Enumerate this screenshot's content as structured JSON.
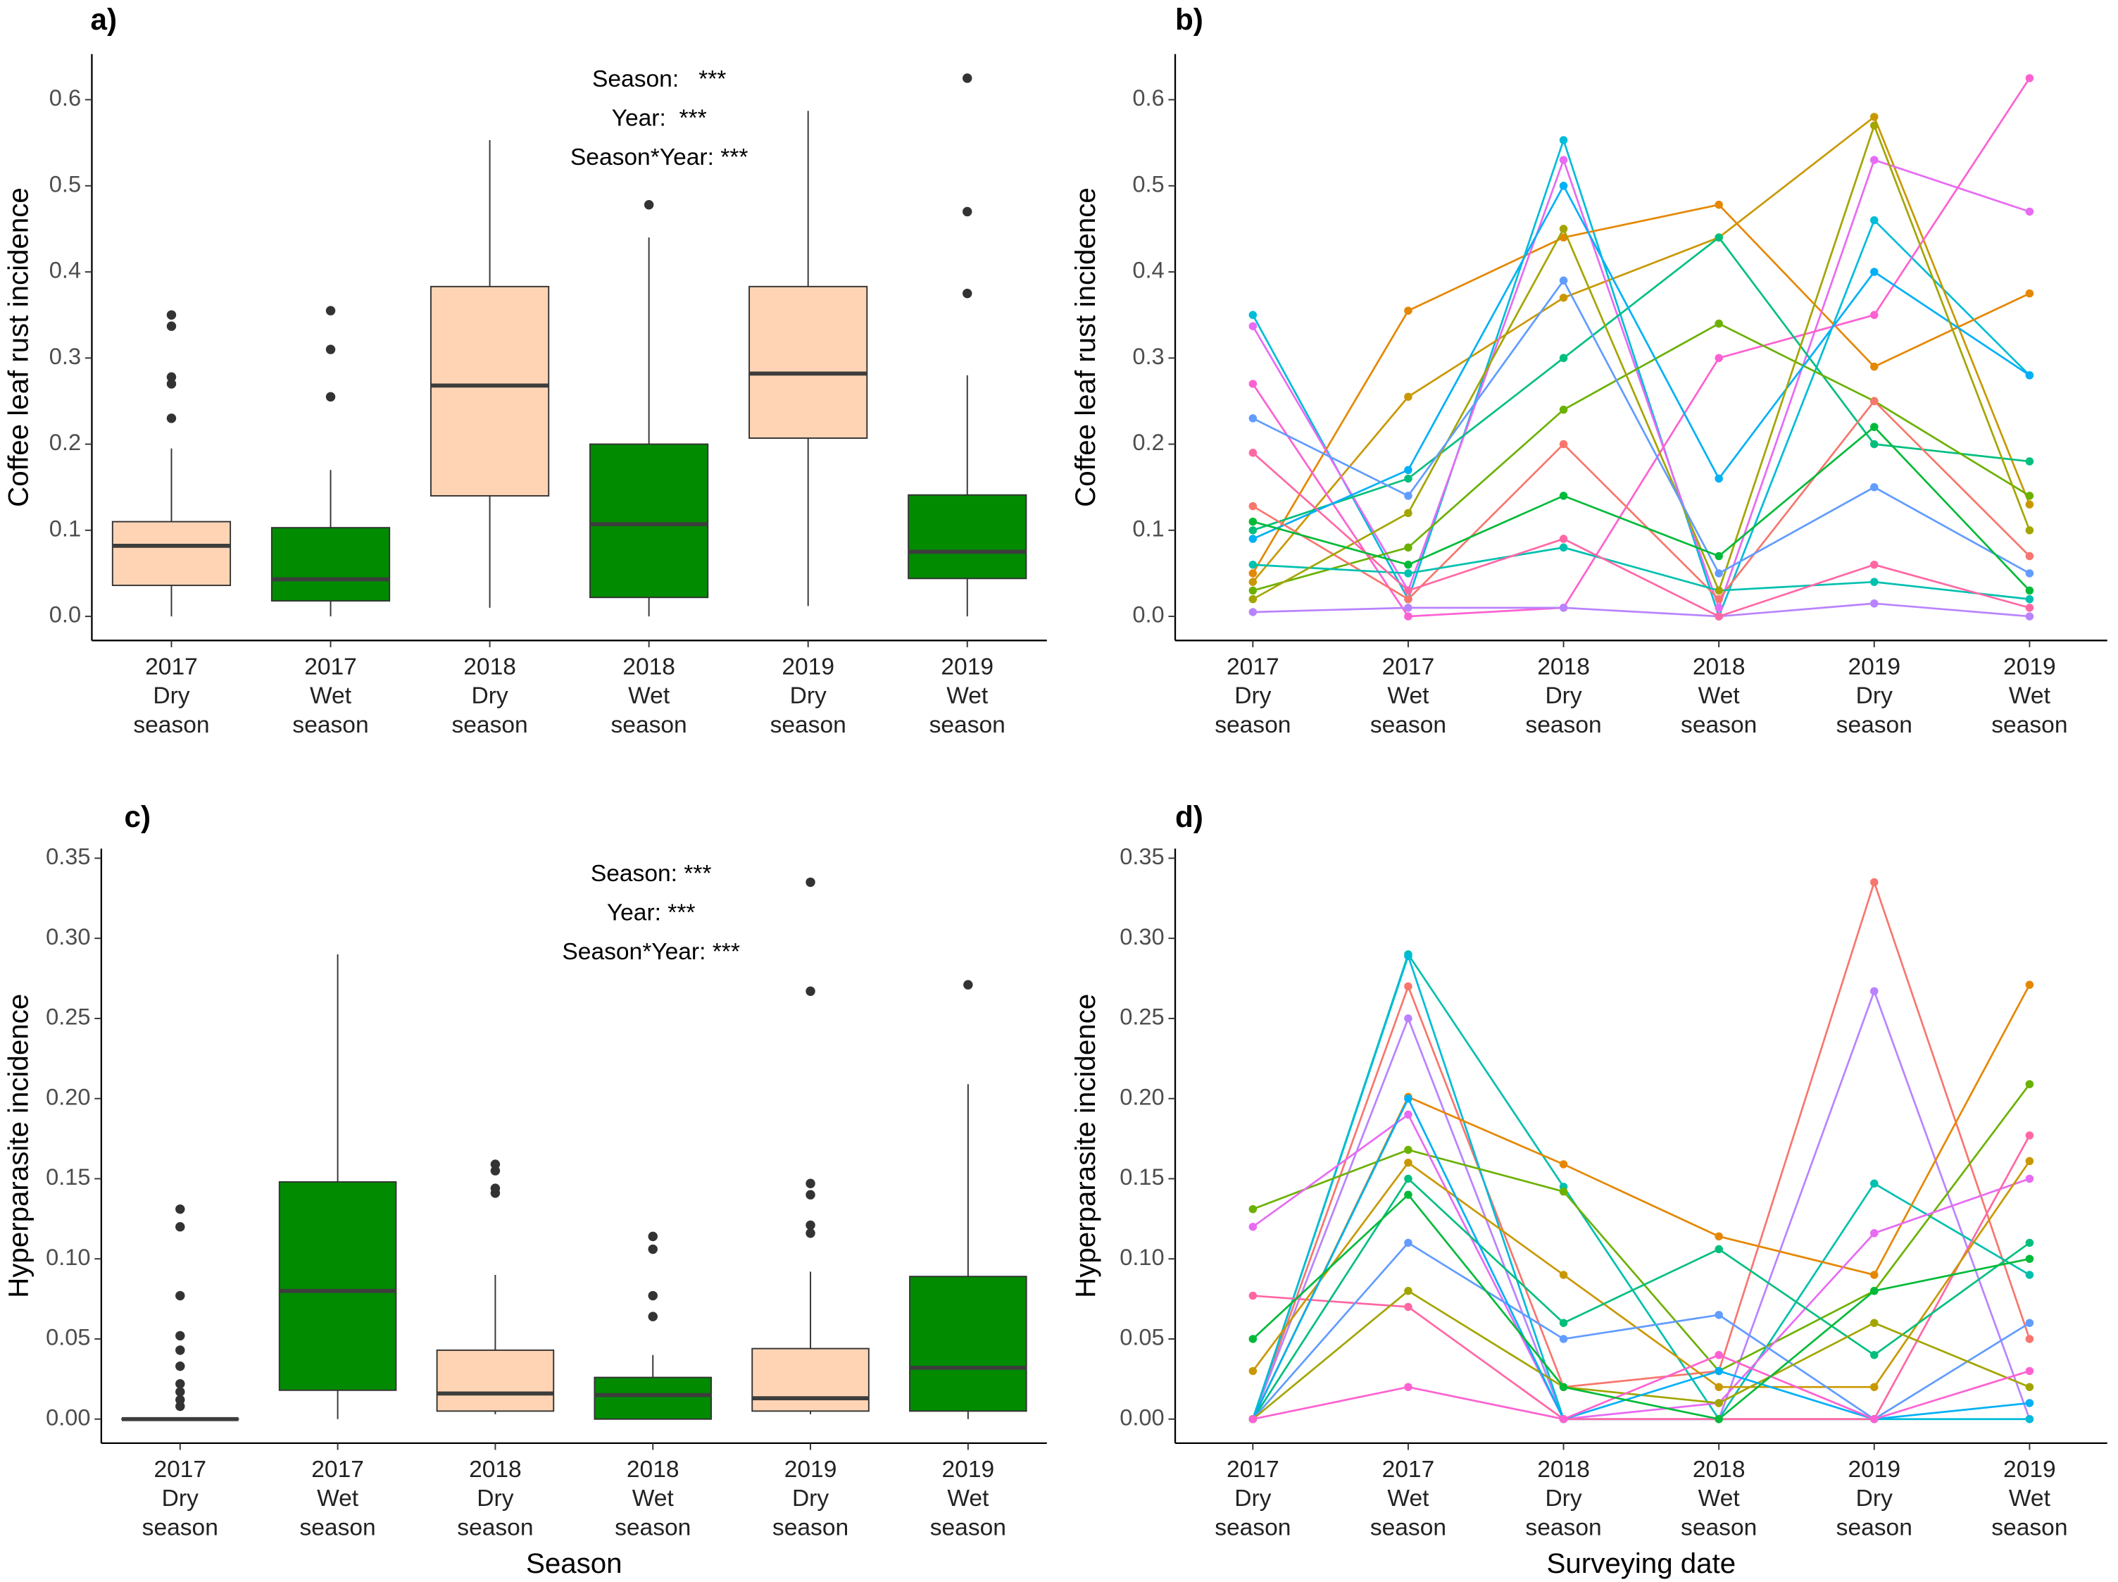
{
  "chart_data": [
    {
      "type": "box",
      "panel_label": "a)",
      "y_label": "Coffee leaf rust incidence",
      "annotations": [
        "Season:   ***",
        "Year:  ***",
        "Season*Year: ***"
      ],
      "categories": [
        [
          "2017",
          "Dry",
          "season"
        ],
        [
          "2017",
          "Wet",
          "season"
        ],
        [
          "2018",
          "Dry",
          "season"
        ],
        [
          "2018",
          "Wet",
          "season"
        ],
        [
          "2019",
          "Dry",
          "season"
        ],
        [
          "2019",
          "Wet",
          "season"
        ]
      ],
      "ylim": [
        -0.028,
        0.653
      ],
      "yticks": [
        {
          "value": 0,
          "label": "0.0"
        },
        0.1,
        0.2,
        0.3,
        0.4,
        0.5,
        0.6
      ],
      "boxes": [
        {
          "color": "#ffd4b4",
          "min": 0,
          "q1": 0.036,
          "median": 0.082,
          "q3": 0.11,
          "max": 0.195,
          "outliers": [
            0.23,
            0.27,
            0.278,
            0.337,
            0.35
          ]
        },
        {
          "color": "#008b00",
          "min": 0,
          "q1": 0.018,
          "median": 0.043,
          "q3": 0.103,
          "max": 0.17,
          "outliers": [
            0.255,
            0.31,
            0.355
          ]
        },
        {
          "color": "#ffd4b4",
          "min": 0.01,
          "q1": 0.14,
          "median": 0.268,
          "q3": 0.383,
          "max": 0.553,
          "outliers": []
        },
        {
          "color": "#008b00",
          "min": 0,
          "q1": 0.022,
          "median": 0.107,
          "q3": 0.2,
          "max": 0.44,
          "outliers": [
            0.478
          ]
        },
        {
          "color": "#ffd4b4",
          "min": 0.012,
          "q1": 0.207,
          "median": 0.282,
          "q3": 0.383,
          "max": 0.587,
          "outliers": []
        },
        {
          "color": "#008b00",
          "min": 0,
          "q1": 0.044,
          "median": 0.075,
          "q3": 0.141,
          "max": 0.28,
          "outliers": [
            0.375,
            0.47,
            0.625
          ]
        }
      ]
    },
    {
      "type": "line",
      "panel_label": "b)",
      "y_label": "Coffee leaf rust incidence",
      "categories": [
        [
          "2017",
          "Dry",
          "season"
        ],
        [
          "2017",
          "Wet",
          "season"
        ],
        [
          "2018",
          "Dry",
          "season"
        ],
        [
          "2018",
          "Wet",
          "season"
        ],
        [
          "2019",
          "Dry",
          "season"
        ],
        [
          "2019",
          "Wet",
          "season"
        ]
      ],
      "ylim": [
        -0.028,
        0.653
      ],
      "yticks": [
        {
          "value": 0,
          "label": "0.0"
        },
        0.1,
        0.2,
        0.3,
        0.4,
        0.5,
        0.6
      ],
      "series": [
        {
          "color": "#00BCD8",
          "values": [
            0.35,
            0.02,
            0.553,
            0.0,
            0.46,
            0.28
          ]
        },
        {
          "color": "#E58700",
          "values": [
            0.05,
            0.355,
            0.44,
            0.478,
            0.29,
            0.375
          ]
        },
        {
          "color": "#C99800",
          "values": [
            0.04,
            0.255,
            0.37,
            0.44,
            0.58,
            0.13
          ]
        },
        {
          "color": "#E76BF3",
          "values": [
            0.337,
            0.03,
            0.53,
            0.01,
            0.53,
            0.47
          ]
        },
        {
          "color": "#FD61D1",
          "values": [
            0.27,
            0.0,
            0.01,
            0.3,
            0.35,
            0.625
          ]
        },
        {
          "color": "#00BF7D",
          "values": [
            0.1,
            0.16,
            0.3,
            0.44,
            0.2,
            0.18
          ]
        },
        {
          "color": "#6BB100",
          "values": [
            0.03,
            0.08,
            0.24,
            0.34,
            0.25,
            0.14
          ]
        },
        {
          "color": "#00B0F6",
          "values": [
            0.09,
            0.17,
            0.5,
            0.16,
            0.4,
            0.28
          ]
        },
        {
          "color": "#F8766D",
          "values": [
            0.128,
            0.02,
            0.2,
            0.02,
            0.25,
            0.07
          ]
        },
        {
          "color": "#B983FF",
          "values": [
            0.005,
            0.01,
            0.01,
            0.0,
            0.015,
            0.0
          ]
        },
        {
          "color": "#00C0AF",
          "values": [
            0.06,
            0.05,
            0.08,
            0.03,
            0.04,
            0.02
          ]
        },
        {
          "color": "#A3A500",
          "values": [
            0.02,
            0.12,
            0.45,
            0.03,
            0.57,
            0.1
          ]
        },
        {
          "color": "#FF67A4",
          "values": [
            0.19,
            0.03,
            0.09,
            0.0,
            0.06,
            0.01
          ]
        },
        {
          "color": "#619CFF",
          "values": [
            0.23,
            0.14,
            0.39,
            0.05,
            0.15,
            0.05
          ]
        },
        {
          "color": "#00BA38",
          "values": [
            0.11,
            0.06,
            0.14,
            0.07,
            0.22,
            0.03
          ]
        }
      ]
    },
    {
      "type": "box",
      "panel_label": "c)",
      "y_label": "Hyperparasite incidence",
      "x_label": "Season",
      "annotations": [
        "Season: ***",
        "Year: ***",
        "Season*Year: ***"
      ],
      "categories": [
        [
          "2017",
          "Dry",
          "season"
        ],
        [
          "2017",
          "Wet",
          "season"
        ],
        [
          "2018",
          "Dry",
          "season"
        ],
        [
          "2018",
          "Wet",
          "season"
        ],
        [
          "2019",
          "Dry",
          "season"
        ],
        [
          "2019",
          "Wet",
          "season"
        ]
      ],
      "ylim": [
        -0.015,
        0.356
      ],
      "yticks": [
        {
          "value": 0,
          "label": "0.00"
        },
        {
          "value": 0.05,
          "label": "0.05"
        },
        {
          "value": 0.1,
          "label": "0.10"
        },
        {
          "value": 0.15,
          "label": "0.15"
        },
        {
          "value": 0.2,
          "label": "0.20"
        },
        {
          "value": 0.25,
          "label": "0.25"
        },
        {
          "value": 0.3,
          "label": "0.30"
        },
        {
          "value": 0.35,
          "label": "0.35"
        }
      ],
      "boxes": [
        {
          "color": "#ffd4b4",
          "min": 0,
          "q1": 0,
          "median": 0,
          "q3": 0,
          "max": 0,
          "outliers": [
            0.008,
            0.012,
            0.017,
            0.022,
            0.033,
            0.043,
            0.052,
            0.077,
            0.12,
            0.131
          ]
        },
        {
          "color": "#008b00",
          "min": 0,
          "q1": 0.018,
          "median": 0.08,
          "q3": 0.148,
          "max": 0.29,
          "outliers": []
        },
        {
          "color": "#ffd4b4",
          "min": 0.003,
          "q1": 0.005,
          "median": 0.016,
          "q3": 0.043,
          "max": 0.09,
          "outliers": [
            0.141,
            0.144,
            0.155,
            0.159
          ]
        },
        {
          "color": "#008b00",
          "min": 0,
          "q1": 0,
          "median": 0.015,
          "q3": 0.026,
          "max": 0.04,
          "outliers": [
            0.064,
            0.077,
            0.106,
            0.114
          ]
        },
        {
          "color": "#ffd4b4",
          "min": 0.003,
          "q1": 0.005,
          "median": 0.013,
          "q3": 0.044,
          "max": 0.092,
          "outliers": [
            0.116,
            0.121,
            0.14,
            0.147,
            0.267,
            0.335
          ]
        },
        {
          "color": "#008b00",
          "min": 0,
          "q1": 0.005,
          "median": 0.032,
          "q3": 0.089,
          "max": 0.209,
          "outliers": [
            0.271
          ]
        }
      ]
    },
    {
      "type": "line",
      "panel_label": "d)",
      "y_label": "Hyperparasite incidence",
      "x_label": "Surveying date",
      "categories": [
        [
          "2017",
          "Dry",
          "season"
        ],
        [
          "2017",
          "Wet",
          "season"
        ],
        [
          "2018",
          "Dry",
          "season"
        ],
        [
          "2018",
          "Wet",
          "season"
        ],
        [
          "2019",
          "Dry",
          "season"
        ],
        [
          "2019",
          "Wet",
          "season"
        ]
      ],
      "ylim": [
        -0.015,
        0.356
      ],
      "yticks": [
        {
          "value": 0,
          "label": "0.00"
        },
        {
          "value": 0.05,
          "label": "0.05"
        },
        {
          "value": 0.1,
          "label": "0.10"
        },
        {
          "value": 0.15,
          "label": "0.15"
        },
        {
          "value": 0.2,
          "label": "0.20"
        },
        {
          "value": 0.25,
          "label": "0.25"
        },
        {
          "value": 0.3,
          "label": "0.30"
        },
        {
          "value": 0.35,
          "label": "0.35"
        }
      ],
      "series": [
        {
          "color": "#F8766D",
          "values": [
            0.0,
            0.27,
            0.02,
            0.03,
            0.335,
            0.05
          ]
        },
        {
          "color": "#B983FF",
          "values": [
            0.0,
            0.25,
            0.0,
            0.0,
            0.267,
            0.0
          ]
        },
        {
          "color": "#00C0AF",
          "values": [
            0.0,
            0.29,
            0.145,
            0.0,
            0.147,
            0.09
          ]
        },
        {
          "color": "#00BCD8",
          "values": [
            0.0,
            0.289,
            0.0,
            0.0,
            0.0,
            0.0
          ]
        },
        {
          "color": "#E58700",
          "values": [
            0.0,
            0.201,
            0.159,
            0.114,
            0.09,
            0.271
          ]
        },
        {
          "color": "#6BB100",
          "values": [
            0.131,
            0.168,
            0.142,
            0.03,
            0.08,
            0.209
          ]
        },
        {
          "color": "#E76BF3",
          "values": [
            0.12,
            0.19,
            0.0,
            0.01,
            0.116,
            0.15
          ]
        },
        {
          "color": "#FF67A4",
          "values": [
            0.077,
            0.07,
            0.0,
            0.0,
            0.0,
            0.177
          ]
        },
        {
          "color": "#C99800",
          "values": [
            0.03,
            0.16,
            0.09,
            0.02,
            0.02,
            0.161
          ]
        },
        {
          "color": "#00BF7D",
          "values": [
            0.0,
            0.15,
            0.06,
            0.106,
            0.04,
            0.11
          ]
        },
        {
          "color": "#619CFF",
          "values": [
            0.0,
            0.11,
            0.05,
            0.065,
            0.0,
            0.06
          ]
        },
        {
          "color": "#A3A500",
          "values": [
            0.0,
            0.08,
            0.02,
            0.01,
            0.06,
            0.02
          ]
        },
        {
          "color": "#00B0F6",
          "values": [
            0.0,
            0.2,
            0.0,
            0.03,
            0.0,
            0.01
          ]
        },
        {
          "color": "#FD61D1",
          "values": [
            0.0,
            0.02,
            0.0,
            0.04,
            0.0,
            0.03
          ]
        },
        {
          "color": "#00BA38",
          "values": [
            0.05,
            0.14,
            0.02,
            0.0,
            0.08,
            0.1
          ]
        }
      ]
    }
  ]
}
